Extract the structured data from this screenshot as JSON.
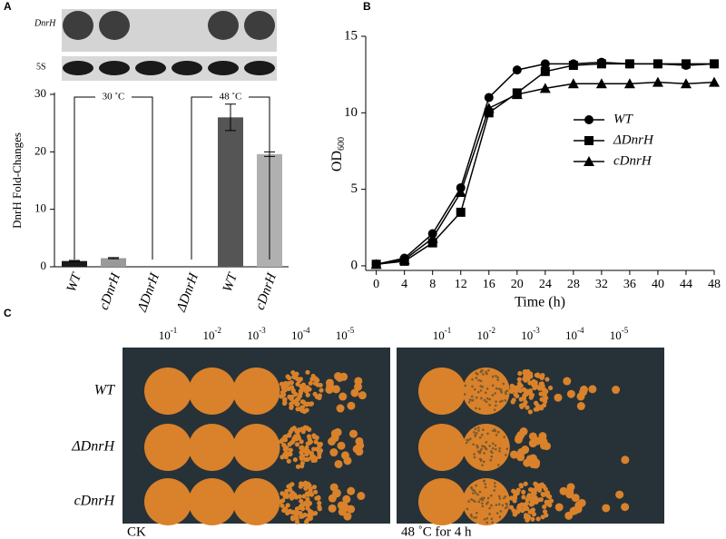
{
  "panels": [
    "A",
    "B",
    "C"
  ],
  "gel": {
    "labels": [
      "DnrH",
      "5S"
    ]
  },
  "chart_data": [
    {
      "type": "bar",
      "ylabel": "DnrH Fold-Changes",
      "categories": [
        "WT",
        "cDnrH",
        "ΔDnrH",
        "ΔDnrH",
        "WT",
        "cDnrH"
      ],
      "values": [
        1.0,
        1.5,
        0,
        0,
        26,
        19.6
      ],
      "errors": [
        0.1,
        0.1,
        0,
        0,
        2.3,
        0.4
      ],
      "colors": [
        "#1a1a1a",
        "#9a9a9a",
        "#1a1a1a",
        "#1a1a1a",
        "#555555",
        "#b0b0b0"
      ],
      "groups": [
        {
          "label": "30 ˚C"
        },
        {
          "label": "48 ˚C"
        }
      ],
      "ylim": [
        0,
        30
      ],
      "yticks": [
        0,
        10,
        20,
        30
      ]
    },
    {
      "type": "line",
      "xlabel": "Time (h)",
      "ylabel": "OD",
      "ylabel_sub": "600",
      "x": [
        0,
        4,
        8,
        12,
        16,
        20,
        24,
        28,
        32,
        36,
        40,
        44,
        48
      ],
      "series": [
        {
          "name": "WT",
          "marker": "circle",
          "color": "#000000",
          "values": [
            0.1,
            0.5,
            2.1,
            5.1,
            11.0,
            12.8,
            13.2,
            13.2,
            13.3,
            13.2,
            13.2,
            13.1,
            13.2
          ]
        },
        {
          "name": "ΔDnrH",
          "marker": "square",
          "color": "#000000",
          "values": [
            0.1,
            0.3,
            1.5,
            3.5,
            10.0,
            11.3,
            12.7,
            13.1,
            13.2,
            13.2,
            13.2,
            13.2,
            13.2
          ]
        },
        {
          "name": "cDnrH",
          "marker": "triangle",
          "color": "#000000",
          "values": [
            0.1,
            0.4,
            1.8,
            4.8,
            10.3,
            11.2,
            11.6,
            11.9,
            11.9,
            11.9,
            12.0,
            11.9,
            12.0
          ]
        }
      ],
      "xlim": [
        -1.5,
        48
      ],
      "xticks": [
        0,
        4,
        8,
        12,
        16,
        20,
        24,
        28,
        32,
        36,
        40,
        44,
        48
      ],
      "ylim": [
        -0.3,
        15
      ],
      "yticks": [
        0,
        5,
        10,
        15
      ]
    }
  ],
  "plates": {
    "dilutions": [
      {
        "base": "10",
        "exp": "-1"
      },
      {
        "base": "10",
        "exp": "-2"
      },
      {
        "base": "10",
        "exp": "-3"
      },
      {
        "base": "10",
        "exp": "-4"
      },
      {
        "base": "10",
        "exp": "-5"
      }
    ],
    "strains": [
      "WT",
      "ΔDnrH",
      "cDnrH"
    ],
    "conditions": [
      "CK",
      "48 ˚C for 4 h"
    ]
  }
}
